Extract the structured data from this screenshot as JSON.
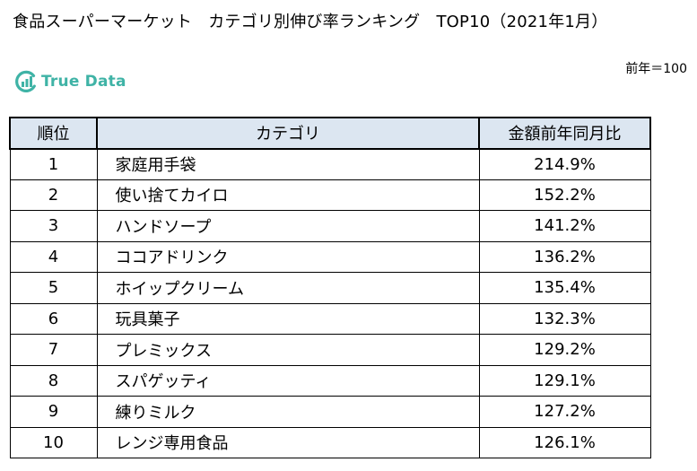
{
  "title": "食品スーパーマーケット　カテゴリ別伸び率ランキング　TOP10（2021年1月）",
  "logo": {
    "text": "True Data",
    "icon": "bar-chart-circle-icon",
    "color": "#3fb3a6"
  },
  "note": "前年＝100",
  "table": {
    "headers": [
      "順位",
      "カテゴリ",
      "金額前年同月比"
    ],
    "header_bg": "#dce6f1",
    "rows": [
      {
        "rank": "1",
        "category": "家庭用手袋",
        "value": "214.9%"
      },
      {
        "rank": "2",
        "category": "使い捨てカイロ",
        "value": "152.2%"
      },
      {
        "rank": "3",
        "category": "ハンドソープ",
        "value": "141.2%"
      },
      {
        "rank": "4",
        "category": "ココアドリンク",
        "value": "136.2%"
      },
      {
        "rank": "5",
        "category": "ホイップクリーム",
        "value": "135.4%"
      },
      {
        "rank": "6",
        "category": "玩具菓子",
        "value": "132.3%"
      },
      {
        "rank": "7",
        "category": "プレミックス",
        "value": "129.2%"
      },
      {
        "rank": "8",
        "category": "スパゲッティ",
        "value": "129.1%"
      },
      {
        "rank": "9",
        "category": "練りミルク",
        "value": "127.2%"
      },
      {
        "rank": "10",
        "category": "レンジ専用食品",
        "value": "126.1%"
      }
    ]
  }
}
